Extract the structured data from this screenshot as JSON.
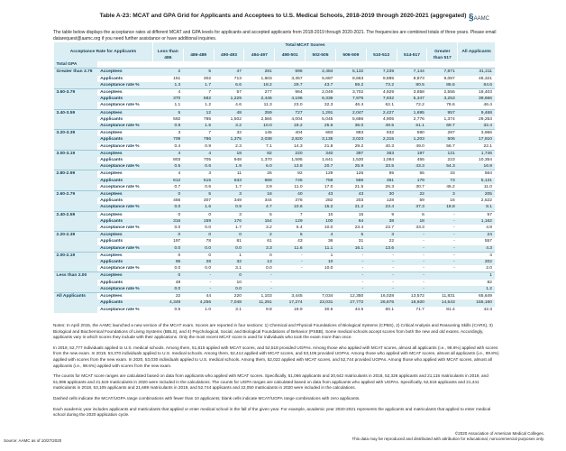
{
  "title": "Table A-23: MCAT and GPA Grid for Applicants and Acceptees to U.S. Medical Schools, 2018-2019 through 2020-2021 (aggregated)",
  "logo": "AAMC",
  "intro": "The table below displays the acceptance rates at different MCAT and GPA levels for applicants and accepted applicants from 2018-2019 through 2020-2021. The frequencies are combined totals of three years. Please email datarequest@aamc.org if you need further assistance or have additional inquiries.",
  "header": {
    "corner": "Acceptance Rate for Applicants",
    "group": "Total MCAT Scores",
    "cols": [
      "Less than 486",
      "486-489",
      "490-493",
      "494-497",
      "498-501",
      "502-505",
      "506-509",
      "510-513",
      "514-517",
      "Greater than 517"
    ],
    "all": "All Applicants",
    "total_gpa": "Total GPA"
  },
  "row_labels": [
    "Acceptees",
    "Applicants",
    "Acceptance rate %"
  ],
  "groups": [
    {
      "gpa": "Greater than 3.79",
      "rows": [
        [
          "2",
          "5",
          "47",
          "291",
          "996",
          "2,484",
          "5,132",
          "7,239",
          "7,144",
          "7,871",
          "31,211"
        ],
        [
          "151",
          "302",
          "713",
          "1,603",
          "3,357",
          "5,687",
          "8,663",
          "9,885",
          "8,873",
          "9,087",
          "48,321"
        ],
        [
          "1.3",
          "1.7",
          "6.6",
          "18.2",
          "29.7",
          "43.7",
          "59.2",
          "73.2",
          "80.5",
          "86.6",
          "64.6"
        ]
      ]
    },
    {
      "gpa": "3.60-3.79",
      "rows": [
        [
          "4",
          "7",
          "57",
          "277",
          "964",
          "2,049",
          "3,702",
          "4,929",
          "3,858",
          "2,556",
          "18,403"
        ],
        [
          "370",
          "582",
          "1,229",
          "2,446",
          "4,196",
          "6,336",
          "7,975",
          "7,932",
          "5,347",
          "3,253",
          "39,666"
        ],
        [
          "1.1",
          "1.2",
          "4.6",
          "11.3",
          "23.0",
          "32.3",
          "46.4",
          "62.1",
          "72.2",
          "78.6",
          "46.4"
        ]
      ]
    },
    {
      "gpa": "3.40-3.59",
      "rows": [
        [
          "5",
          "12",
          "48",
          "259",
          "727",
          "1,291",
          "2,047",
          "2,427",
          "1,695",
          "957",
          "9,468"
        ],
        [
          "592",
          "785",
          "1,502",
          "2,584",
          "4,004",
          "5,045",
          "5,686",
          "4,905",
          "2,776",
          "1,374",
          "29,253"
        ],
        [
          "0.8",
          "1.5",
          "3.2",
          "10.0",
          "18.2",
          "25.6",
          "36.0",
          "49.5",
          "61.1",
          "69.7",
          "32.4"
        ]
      ]
    },
    {
      "gpa": "3.20-3.39",
      "rows": [
        [
          "3",
          "7",
          "32",
          "145",
          "404",
          "683",
          "883",
          "932",
          "590",
          "287",
          "3,966"
        ],
        [
          "709",
          "786",
          "1,375",
          "2,038",
          "2,820",
          "3,135",
          "3,023",
          "2,315",
          "1,203",
          "506",
          "17,910"
        ],
        [
          "0.4",
          "0.9",
          "2.3",
          "7.1",
          "14.3",
          "21.8",
          "29.2",
          "40.3",
          "49.0",
          "56.7",
          "22.1"
        ]
      ]
    },
    {
      "gpa": "3.00-3.19",
      "rows": [
        [
          "4",
          "4",
          "18",
          "82",
          "220",
          "340",
          "397",
          "363",
          "197",
          "121",
          "1,746"
        ],
        [
          "803",
          "705",
          "948",
          "1,370",
          "1,595",
          "1,641",
          "1,530",
          "1,084",
          "455",
          "223",
          "10,354"
        ],
        [
          "0.5",
          "0.6",
          "1.9",
          "6.0",
          "13.8",
          "20.7",
          "25.9",
          "33.5",
          "43.3",
          "54.3",
          "16.9"
        ]
      ]
    },
    {
      "gpa": "2.80-2.99",
      "rows": [
        [
          "4",
          "3",
          "11",
          "26",
          "82",
          "129",
          "126",
          "95",
          "55",
          "33",
          "564"
        ],
        [
          "612",
          "515",
          "633",
          "669",
          "745",
          "758",
          "586",
          "361",
          "179",
          "73",
          "5,131"
        ],
        [
          "0.7",
          "0.6",
          "1.7",
          "3.9",
          "11.0",
          "17.0",
          "21.5",
          "26.3",
          "30.7",
          "45.2",
          "11.0"
        ]
      ]
    },
    {
      "gpa": "2.60-2.79",
      "rows": [
        [
          "0",
          "5",
          "3",
          "16",
          "40",
          "43",
          "43",
          "30",
          "22",
          "3",
          "205"
        ],
        [
          "456",
          "307",
          "349",
          "344",
          "378",
          "282",
          "203",
          "128",
          "59",
          "16",
          "2,522"
        ],
        [
          "0.0",
          "1.6",
          "0.9",
          "4.7",
          "10.6",
          "15.2",
          "21.2",
          "23.4",
          "37.3",
          "18.8",
          "8.1"
        ]
      ]
    },
    {
      "gpa": "2.40-2.59",
      "rows": [
        [
          "0",
          "0",
          "3",
          "5",
          "7",
          "10",
          "15",
          "9",
          "6",
          "-",
          "57"
        ],
        [
          "316",
          "159",
          "176",
          "154",
          "129",
          "100",
          "64",
          "38",
          "18",
          "-",
          "1,162"
        ],
        [
          "0.0",
          "0.0",
          "1.7",
          "3.2",
          "5.4",
          "10.0",
          "23.4",
          "23.7",
          "33.3",
          "-",
          "4.9"
        ]
      ]
    },
    {
      "gpa": "2.20-2.39",
      "rows": [
        [
          "0",
          "0",
          "0",
          "2",
          "5",
          "4",
          "5",
          "3",
          "-",
          "-",
          "24"
        ],
        [
          "197",
          "78",
          "81",
          "61",
          "43",
          "36",
          "31",
          "22",
          "-",
          "-",
          "557"
        ],
        [
          "0.0",
          "0.0",
          "0.0",
          "3.3",
          "11.6",
          "11.1",
          "16.1",
          "13.6",
          "-",
          "-",
          "4.3"
        ]
      ]
    },
    {
      "gpa": "2.00-2.19",
      "rows": [
        [
          "0",
          "0",
          "1",
          "0",
          "-",
          "1",
          "-",
          "-",
          "-",
          "-",
          "4"
        ],
        [
          "95",
          "28",
          "32",
          "13",
          "-",
          "10",
          "-",
          "-",
          "-",
          "-",
          "202"
        ],
        [
          "0.0",
          "0.0",
          "3.1",
          "0.0",
          "-",
          "10.0",
          "-",
          "-",
          "-",
          "-",
          "2.0"
        ]
      ]
    },
    {
      "gpa": "Less than 2.00",
      "rows": [
        [
          "0",
          "-",
          "0",
          "-",
          "",
          "",
          "-",
          "-",
          "-",
          "",
          "1"
        ],
        [
          "48",
          "-",
          "10",
          "-",
          "",
          "",
          "-",
          "-",
          "-",
          "",
          "82"
        ],
        [
          "0.0",
          "-",
          "0.0",
          "-",
          "",
          "",
          "-",
          "-",
          "-",
          "",
          "1.2"
        ]
      ]
    },
    {
      "gpa": "All Applicants",
      "rows": [
        [
          "22",
          "44",
          "220",
          "1,103",
          "3,445",
          "7,034",
          "12,350",
          "16,028",
          "13,572",
          "11,831",
          "65,649"
        ],
        [
          "4,349",
          "4,256",
          "7,048",
          "11,291",
          "17,274",
          "23,031",
          "27,772",
          "26,676",
          "18,920",
          "14,543",
          "155,160"
        ],
        [
          "0.5",
          "1.0",
          "3.1",
          "9.8",
          "19.9",
          "30.5",
          "44.5",
          "60.1",
          "71.7",
          "81.4",
          "42.3"
        ]
      ]
    }
  ],
  "notes": [
    "Notes: In April 2015, the AAMC launched a new version of the MCAT exam. Scores are reported in four sections: 1) Chemical and Physical Foundations of Biological Systems (CPBS), 2) Critical Analysis and Reasoning Skills (CARS), 3) Biological and Biochemical Foundations of Living Systems (BBLS), and 4) Psychological, Social, and Biological Foundations of Behavior (PSBB). Some medical schools accept scores from both the new and old exams. Accordingly, applicants vary in which scores they include with their applications. Only the most recent MCAT score is used for individuals who took the exam more than once.",
    "In 2018, 52,777 individuals applied to U.S. medical schools. Among them, 51,815 applied with MCAT scores, and 52,518 provided UGPAs. Among those who applied with MCAT scores, almost all applicants (i.e., 98.6%) applied with scores from the new exam. In 2019, 53,370 individuals applied to U.S. medical schools. Among them, 52,414 applied with MCAT scores, and 53,106 provided UGPAs. Among those who applied with MCAT scores, almost all applicants (i.e., 99.8%) applied with scores from the new exam. In 2020, 53,030 individuals applied to U.S. medical schools. Among them, 52,022 applied with MCAT scores, and 52,744 provided UGPAs. Among those who applied with MCAT scores, almost all applicants (i.e., 98.6%) applied with scores from the new exam.",
    "The counts for MCAT score ranges are calculated based on data from applicants who applied with MCAT scores. Specifically, 51,066 applicants and 20,642 matriculants in 2018, 52,326 applicants and 21,116 matriculants in 2019, and 51,996 applicants and 21,519 matriculants in 2020 were included in the calculations. The counts for UGPA ranges are calculated based on data from applicants who applied with UGPAs. Specifically, 52,518 applicants and 21,441 matriculants in 2018, 53,105 applicants and 21,689 matriculants in 2019, and 52,744 applicants and 22,050 matriculants in 2020 were included in the calculations.",
    "Dashed cells indicate the MCAT/UGPA range combinations with fewer than 10 applicants; blank cells indicate MCAT/UGPA range combinations with zero applicants.",
    "Each academic year includes applicants and matriculants that applied or enter medical school in the fall of the given year. For example, academic year 2020-2021 represents the applicants and matriculants that applied to enter medical school during the 2020 application cycle."
  ],
  "source": "Source: AAMC as of 10/27/2020",
  "copyright": [
    "©2020 Association of American Medical Colleges.",
    "This data may be reproduced and distributed with attribution for educational, noncommercial purposes only."
  ]
}
